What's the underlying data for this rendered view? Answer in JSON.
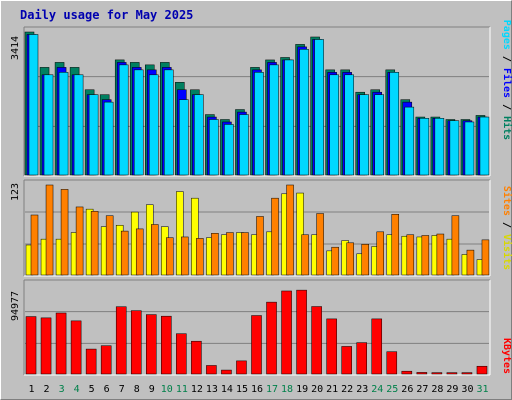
{
  "title": "Daily usage for May 2025",
  "colors": {
    "panel_bg": "#c0c0c0",
    "plot_bg": "#c0c0c0",
    "grid": "#7f7f7f",
    "pages": "#00d8ff",
    "files": "#0000ff",
    "hits": "#008060",
    "visits": "#ffff00",
    "sites": "#ff8000",
    "kbytes": "#ff0000",
    "day_weekday": "#000000",
    "day_weekend": "#00804a"
  },
  "chart_data": [
    {
      "type": "bar",
      "name": "hits-files-pages",
      "categories": [
        "1",
        "2",
        "3",
        "4",
        "5",
        "6",
        "7",
        "8",
        "9",
        "10",
        "11",
        "12",
        "13",
        "14",
        "15",
        "16",
        "17",
        "18",
        "19",
        "20",
        "21",
        "22",
        "23",
        "24",
        "25",
        "26",
        "27",
        "28",
        "29",
        "30",
        "31"
      ],
      "y_max_label": "3414",
      "ylim": [
        0,
        3414
      ],
      "series": [
        {
          "name": "Hits",
          "values": [
            3414,
            2569,
            2688,
            2569,
            2035,
            1918,
            2748,
            2688,
            2629,
            2688,
            2213,
            2035,
            1443,
            1325,
            1563,
            2569,
            2747,
            2806,
            3118,
            3295,
            2510,
            2510,
            1977,
            2035,
            2510,
            1799,
            1384,
            1384,
            1325,
            1325,
            1422
          ]
        },
        {
          "name": "Files",
          "values": [
            3355,
            2392,
            2569,
            2392,
            1918,
            1799,
            2688,
            2569,
            2510,
            2569,
            2035,
            1918,
            1384,
            1266,
            1502,
            2510,
            2688,
            2747,
            3059,
            3236,
            2451,
            2451,
            1918,
            1977,
            2451,
            1740,
            1354,
            1354,
            1296,
            1296,
            1384
          ]
        },
        {
          "name": "Pages",
          "values": [
            3355,
            2392,
            2451,
            2392,
            1918,
            1740,
            2629,
            2510,
            2392,
            2510,
            1799,
            1918,
            1325,
            1207,
            1443,
            2451,
            2629,
            2747,
            3000,
            3236,
            2392,
            2392,
            1918,
            1918,
            2451,
            1621,
            1354,
            1354,
            1296,
            1266,
            1384
          ]
        }
      ]
    },
    {
      "type": "bar",
      "name": "visits-sites",
      "categories": [
        "1",
        "2",
        "3",
        "4",
        "5",
        "6",
        "7",
        "8",
        "9",
        "10",
        "11",
        "12",
        "13",
        "14",
        "15",
        "16",
        "17",
        "18",
        "19",
        "20",
        "21",
        "22",
        "23",
        "24",
        "25",
        "26",
        "27",
        "28",
        "29",
        "30",
        "31"
      ],
      "y_max_label": "123",
      "ylim": [
        0,
        123
      ],
      "series": [
        {
          "name": "Visits",
          "values": [
            41,
            49,
            49,
            58,
            90,
            66,
            68,
            86,
            96,
            66,
            114,
            105,
            51,
            55,
            58,
            55,
            59,
            111,
            112,
            55,
            33,
            47,
            29,
            39,
            55,
            53,
            52,
            54,
            49,
            28,
            21
          ]
        },
        {
          "name": "Sites",
          "values": [
            82,
            123,
            117,
            93,
            87,
            81,
            60,
            63,
            69,
            51,
            52,
            50,
            57,
            58,
            58,
            80,
            105,
            123,
            55,
            84,
            38,
            44,
            42,
            59,
            83,
            55,
            54,
            56,
            81,
            34,
            48
          ]
        }
      ]
    },
    {
      "type": "bar",
      "name": "kbytes",
      "categories": [
        "1",
        "2",
        "3",
        "4",
        "5",
        "6",
        "7",
        "8",
        "9",
        "10",
        "11",
        "12",
        "13",
        "14",
        "15",
        "16",
        "17",
        "18",
        "19",
        "20",
        "21",
        "22",
        "23",
        "24",
        "25",
        "26",
        "27",
        "28",
        "29",
        "30",
        "31"
      ],
      "y_max_label": "94977",
      "ylim": [
        0,
        94977
      ],
      "series": [
        {
          "name": "KBytes",
          "values": [
            61300,
            59900,
            65100,
            56700,
            26600,
            30200,
            71800,
            67600,
            63400,
            61700,
            43000,
            35000,
            9100,
            4200,
            14000,
            62400,
            76700,
            88600,
            89500,
            72000,
            58800,
            29400,
            33500,
            58800,
            23800,
            3000,
            1700,
            1500,
            1500,
            1500,
            8300
          ]
        }
      ]
    }
  ],
  "legend": {
    "panel1": [
      {
        "text": "Pages",
        "color": "#00d8ff"
      },
      {
        "text": " / ",
        "color": "#000000"
      },
      {
        "text": "Files",
        "color": "#0000ff"
      },
      {
        "text": " / ",
        "color": "#000000"
      },
      {
        "text": "Hits",
        "color": "#008060"
      }
    ],
    "panel2": [
      {
        "text": "Sites",
        "color": "#ff8000"
      },
      {
        "text": " / ",
        "color": "#000000"
      },
      {
        "text": "Visits",
        "color": "#d8d800"
      }
    ],
    "panel3": [
      {
        "text": "KBytes",
        "color": "#ff0000"
      }
    ]
  },
  "weekend_days": [
    "3",
    "4",
    "10",
    "11",
    "17",
    "18",
    "24",
    "25",
    "31"
  ]
}
